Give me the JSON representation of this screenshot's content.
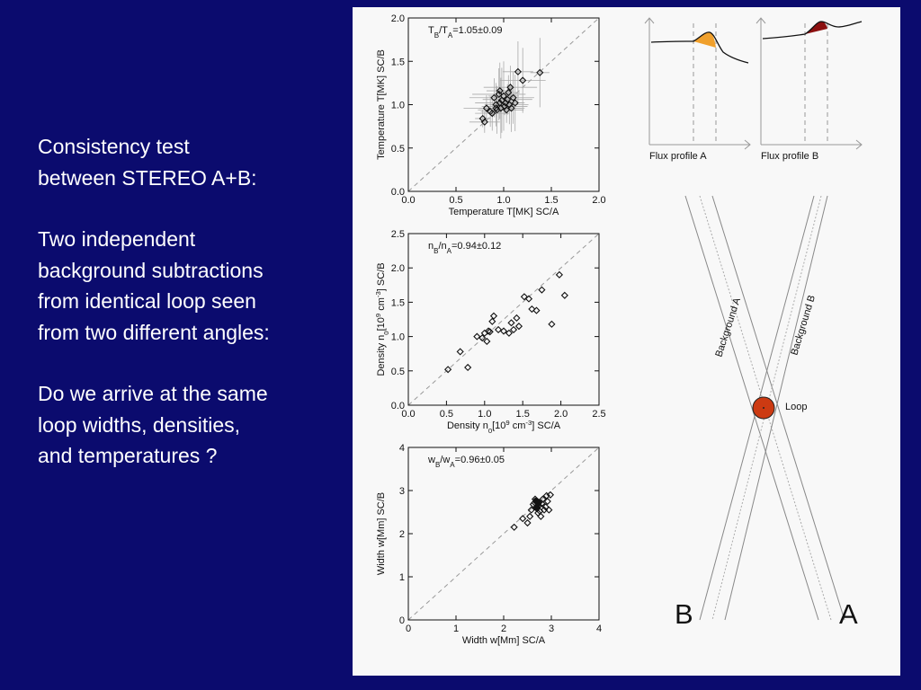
{
  "slide": {
    "paragraphs": [
      "Consistency test\nbetween STEREO A+B:",
      "Two independent\nbackground subtractions\nfrom identical loop seen\nfrom two different angles:",
      "Do we arrive at the same\nloop widths, densities,\nand temperatures ?"
    ]
  },
  "chart_data": [
    {
      "type": "scatter",
      "id": "temperature",
      "annotation": {
        "ratio_label": "T",
        "sub_b": "B",
        "sub_a": "A",
        "value": "=1.05",
        "err": "0.09"
      },
      "xlabel": "Temperature T[MK] SC/A",
      "ylabel": "Temperature T[MK] SC/B",
      "xlim": [
        0,
        2
      ],
      "ylim": [
        0,
        2
      ],
      "xticks": [
        "0.0",
        "0.5",
        "1.0",
        "1.5",
        "2.0"
      ],
      "yticks": [
        "0.0",
        "0.5",
        "1.0",
        "1.5",
        "2.0"
      ],
      "error_bars": true,
      "points": [
        [
          0.78,
          0.84
        ],
        [
          0.8,
          0.8
        ],
        [
          0.82,
          0.96
        ],
        [
          0.86,
          0.92
        ],
        [
          0.88,
          0.9
        ],
        [
          0.9,
          1.08
        ],
        [
          0.92,
          1.0
        ],
        [
          0.93,
          0.94
        ],
        [
          0.95,
          1.12
        ],
        [
          0.96,
          1.16
        ],
        [
          0.97,
          0.96
        ],
        [
          0.98,
          1.05
        ],
        [
          1.0,
          1.1
        ],
        [
          1.01,
          0.98
        ],
        [
          1.02,
          1.02
        ],
        [
          1.03,
          0.94
        ],
        [
          1.04,
          1.06
        ],
        [
          1.05,
          1.14
        ],
        [
          1.06,
          1.0
        ],
        [
          1.07,
          1.2
        ],
        [
          1.08,
          0.96
        ],
        [
          1.1,
          1.08
        ],
        [
          1.12,
          1.02
        ],
        [
          1.15,
          1.38
        ],
        [
          1.2,
          1.28
        ],
        [
          1.38,
          1.37
        ],
        [
          0.92,
          0.96
        ],
        [
          0.96,
          1.02
        ]
      ]
    },
    {
      "type": "scatter",
      "id": "density",
      "annotation": {
        "ratio_label": "n",
        "sub_b": "B",
        "sub_a": "A",
        "value": "=0.94",
        "err": "0.12"
      },
      "xlabel": "Density n0[10^9 cm^-3] SC/A",
      "ylabel": "Density n0[10^9 cm^-3] SC/B",
      "xlim": [
        0,
        2.5
      ],
      "ylim": [
        0,
        2.5
      ],
      "xticks": [
        "0.0",
        "0.5",
        "1.0",
        "1.5",
        "2.0",
        "2.5"
      ],
      "yticks": [
        "0.0",
        "0.5",
        "1.0",
        "1.5",
        "2.0",
        "2.5"
      ],
      "error_bars": false,
      "points": [
        [
          0.52,
          0.52
        ],
        [
          0.68,
          0.78
        ],
        [
          0.78,
          0.55
        ],
        [
          0.9,
          1.0
        ],
        [
          0.97,
          0.98
        ],
        [
          1.0,
          1.05
        ],
        [
          1.03,
          0.93
        ],
        [
          1.05,
          1.08
        ],
        [
          1.07,
          1.07
        ],
        [
          1.1,
          1.22
        ],
        [
          1.12,
          1.3
        ],
        [
          1.18,
          1.1
        ],
        [
          1.25,
          1.08
        ],
        [
          1.32,
          1.05
        ],
        [
          1.35,
          1.2
        ],
        [
          1.38,
          1.1
        ],
        [
          1.42,
          1.27
        ],
        [
          1.45,
          1.15
        ],
        [
          1.52,
          1.58
        ],
        [
          1.58,
          1.55
        ],
        [
          1.62,
          1.4
        ],
        [
          1.68,
          1.38
        ],
        [
          1.75,
          1.68
        ],
        [
          1.88,
          1.18
        ],
        [
          1.98,
          1.9
        ],
        [
          2.05,
          1.6
        ]
      ]
    },
    {
      "type": "scatter",
      "id": "width",
      "annotation": {
        "ratio_label": "w",
        "sub_b": "B",
        "sub_a": "A",
        "value": "=0.96",
        "err": "0.05"
      },
      "xlabel": "Width w[Mm] SC/A",
      "ylabel": "Width w[Mm] SC/B",
      "xlim": [
        0,
        4
      ],
      "ylim": [
        0,
        4
      ],
      "xticks": [
        "0",
        "1",
        "2",
        "3",
        "4"
      ],
      "yticks": [
        "0",
        "1",
        "2",
        "3",
        "4"
      ],
      "error_bars": false,
      "points": [
        [
          2.22,
          2.15
        ],
        [
          2.4,
          2.35
        ],
        [
          2.5,
          2.25
        ],
        [
          2.55,
          2.4
        ],
        [
          2.58,
          2.55
        ],
        [
          2.62,
          2.68
        ],
        [
          2.65,
          2.72
        ],
        [
          2.68,
          2.6
        ],
        [
          2.7,
          2.75
        ],
        [
          2.72,
          2.48
        ],
        [
          2.74,
          2.65
        ],
        [
          2.76,
          2.52
        ],
        [
          2.78,
          2.4
        ],
        [
          2.8,
          2.7
        ],
        [
          2.82,
          2.8
        ],
        [
          2.85,
          2.55
        ],
        [
          2.88,
          2.62
        ],
        [
          2.9,
          2.88
        ],
        [
          2.92,
          2.75
        ],
        [
          2.95,
          2.55
        ],
        [
          2.98,
          2.9
        ],
        [
          2.66,
          2.8
        ],
        [
          2.7,
          2.58
        ],
        [
          2.74,
          2.72
        ]
      ],
      "filled_points": [
        [
          2.68,
          2.76
        ],
        [
          2.72,
          2.7
        ],
        [
          2.7,
          2.62
        ]
      ]
    }
  ],
  "flux_profiles": {
    "a": {
      "label": "Flux profile A",
      "fill": "#f0a02c"
    },
    "b": {
      "label": "Flux profile B",
      "fill": "#8c1010"
    }
  },
  "geometry_diagram": {
    "background_a_label": "Background A",
    "background_b_label": "Background B",
    "loop_label": "Loop",
    "loop_fill": "#cc3a12",
    "view_b_label": "B",
    "view_a_label": "A"
  }
}
